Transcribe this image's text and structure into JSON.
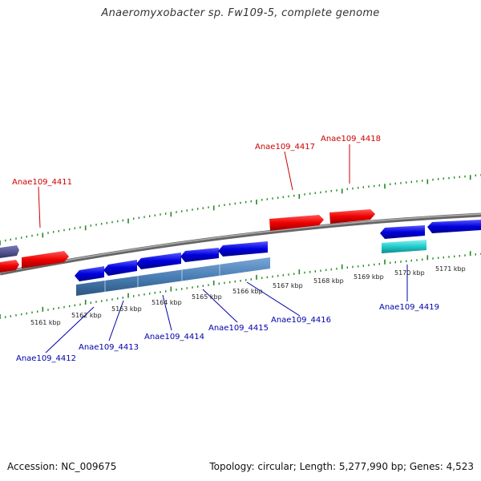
{
  "header": {
    "title": "Anaeromyxobacter sp. Fw109-5, complete genome"
  },
  "footer": {
    "accession": "Accession: NC_009675",
    "summary": "Topology: circular; Length: 5,277,990 bp; Genes: 4,523"
  },
  "colors": {
    "plus_strand_gene": "#ee0000",
    "minus_strand_gene": "#0000dd",
    "operon": "#4a7fb5",
    "rna_gene": "#22cccc",
    "partial_gene": "#4a4a8a",
    "backbone": "#888888",
    "tick": "#228822",
    "label_plus": "#cc0000",
    "label_minus": "#0000aa"
  },
  "scale": {
    "ticks": [
      "5161 kbp",
      "5162 kbp",
      "5163 kbp",
      "5164 kbp",
      "5165 kbp",
      "5166 kbp",
      "5167 kbp",
      "5168 kbp",
      "5169 kbp",
      "5170 kbp",
      "5171 kbp"
    ]
  },
  "genes": {
    "labels": [
      {
        "id": "g4411",
        "text": "Anae109_4411",
        "strand": "plus"
      },
      {
        "id": "g4417",
        "text": "Anae109_4417",
        "strand": "plus"
      },
      {
        "id": "g4418",
        "text": "Anae109_4418",
        "strand": "plus"
      },
      {
        "id": "g4412",
        "text": "Anae109_4412",
        "strand": "minus"
      },
      {
        "id": "g4413",
        "text": "Anae109_4413",
        "strand": "minus"
      },
      {
        "id": "g4414",
        "text": "Anae109_4414",
        "strand": "minus"
      },
      {
        "id": "g4415",
        "text": "Anae109_4415",
        "strand": "minus"
      },
      {
        "id": "g4416",
        "text": "Anae109_4416",
        "strand": "minus"
      },
      {
        "id": "g4419",
        "text": "Anae109_4419",
        "strand": "minus"
      }
    ]
  }
}
